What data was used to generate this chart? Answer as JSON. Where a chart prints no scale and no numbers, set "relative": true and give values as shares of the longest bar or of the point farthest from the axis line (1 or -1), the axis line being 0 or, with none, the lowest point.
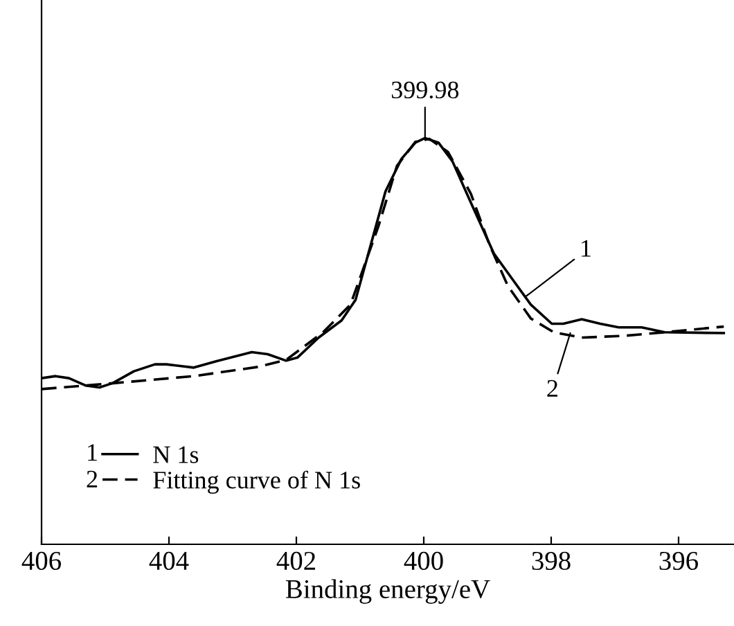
{
  "chart_data": {
    "type": "line",
    "relative": true,
    "xlabel": "Binding energy/eV",
    "xlim": [
      406,
      395.13
    ],
    "xticks": [
      406,
      404,
      402,
      400,
      398,
      396
    ],
    "legend": "bottom left",
    "grid": false,
    "series": [
      {
        "name": "N 1s",
        "color": "#000000",
        "line_style": "solid",
        "x": [
          406.0,
          405.78,
          405.57,
          405.31,
          405.09,
          404.88,
          404.55,
          404.22,
          404.04,
          403.61,
          403.25,
          402.7,
          402.45,
          402.16,
          401.98,
          401.65,
          401.29,
          401.07,
          400.85,
          400.6,
          400.35,
          400.13,
          399.98,
          399.77,
          399.55,
          399.26,
          398.9,
          398.61,
          398.32,
          397.99,
          397.81,
          397.52,
          397.23,
          396.94,
          396.58,
          396.22,
          395.29
        ],
        "values": [
          0.409,
          0.414,
          0.409,
          0.391,
          0.386,
          0.397,
          0.426,
          0.443,
          0.443,
          0.435,
          0.451,
          0.473,
          0.468,
          0.452,
          0.46,
          0.509,
          0.551,
          0.602,
          0.727,
          0.869,
          0.949,
          0.989,
          1.0,
          0.989,
          0.943,
          0.841,
          0.716,
          0.653,
          0.59,
          0.543,
          0.543,
          0.554,
          0.543,
          0.534,
          0.534,
          0.522,
          0.52
        ]
      },
      {
        "name": "Fitting curve of N 1s",
        "color": "#000000",
        "line_style": "dashed",
        "x": [
          406.0,
          404.84,
          403.61,
          402.59,
          402.16,
          401.58,
          401.15,
          400.71,
          400.42,
          400.13,
          399.91,
          399.62,
          399.26,
          398.97,
          398.68,
          398.32,
          397.96,
          397.52,
          396.87,
          396.22,
          395.29
        ],
        "values": [
          0.382,
          0.397,
          0.414,
          0.437,
          0.454,
          0.522,
          0.59,
          0.784,
          0.932,
          0.991,
          0.998,
          0.966,
          0.863,
          0.738,
          0.636,
          0.556,
          0.522,
          0.509,
          0.513,
          0.522,
          0.536
        ]
      }
    ],
    "annotations": [
      {
        "text": "399.98",
        "x": 399.98,
        "y": 1.0
      },
      {
        "text": "1",
        "x": 398.4,
        "y": 0.61
      },
      {
        "text": "2",
        "x": 397.7,
        "y": 0.52
      },
      "1",
      "2"
    ]
  }
}
